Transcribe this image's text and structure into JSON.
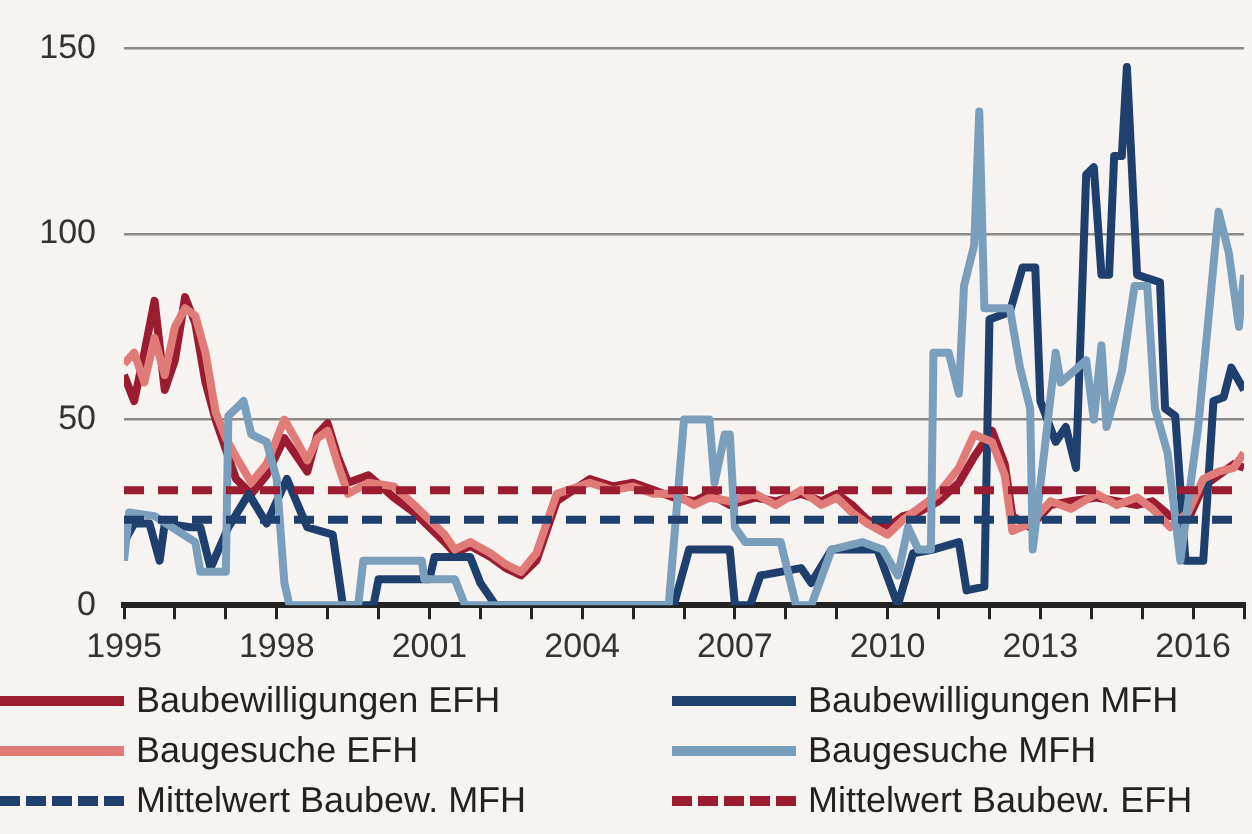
{
  "chart_data": {
    "type": "line",
    "xlim": [
      1995,
      2017
    ],
    "ylim": [
      0,
      150
    ],
    "xticks": [
      1995,
      {
        "value": 1996,
        "label": null
      },
      {
        "value": 1997,
        "label": null
      },
      1998,
      {
        "value": 1999,
        "label": null
      },
      {
        "value": 2000,
        "label": null
      },
      2001,
      {
        "value": 2002,
        "label": null
      },
      {
        "value": 2003,
        "label": null
      },
      2004,
      {
        "value": 2005,
        "label": null
      },
      {
        "value": 2006,
        "label": null
      },
      2007,
      {
        "value": 2008,
        "label": null
      },
      {
        "value": 2009,
        "label": null
      },
      2010,
      {
        "value": 2011,
        "label": null
      },
      {
        "value": 2012,
        "label": null
      },
      2013,
      {
        "value": 2014,
        "label": null
      },
      {
        "value": 2015,
        "label": null
      },
      2016,
      {
        "value": 2017,
        "label": null
      }
    ],
    "yticks": [
      0,
      50,
      100,
      150
    ],
    "grid": "y",
    "legend": "bottom",
    "series": [
      {
        "name": "Baubewilligungen EFH",
        "color": "#9b1b30",
        "x": [
          1995.0,
          1995.2,
          1995.4,
          1995.6,
          1995.8,
          1996.0,
          1996.2,
          1996.4,
          1996.6,
          1996.8,
          1997.0,
          1997.2,
          1997.5,
          1997.8,
          1998.15,
          1998.4,
          1998.6,
          1998.8,
          1999.0,
          1999.2,
          1999.4,
          1999.8,
          2000.3,
          2000.7,
          2001.0,
          2001.3,
          2001.5,
          2001.8,
          2002.2,
          2002.5,
          2002.8,
          2003.1,
          2003.5,
          2004.15,
          2004.6,
          2005.0,
          2005.4,
          2005.8,
          2006.2,
          2006.5,
          2006.9,
          2007.4,
          2007.8,
          2008.3,
          2008.7,
          2009.0,
          2009.3,
          2009.6,
          2010.0,
          2010.3,
          2010.6,
          2011.0,
          2011.4,
          2011.7,
          2012.05,
          2012.3,
          2012.45,
          2012.8,
          2013.2,
          2013.6,
          2014.1,
          2014.5,
          2014.9,
          2015.2,
          2015.55,
          2015.9,
          2016.2,
          2016.5,
          2016.8,
          2017.0
        ],
        "values": [
          62,
          55,
          68,
          82,
          58,
          66,
          83,
          76,
          60,
          50,
          42,
          34,
          30,
          35,
          45,
          40,
          36,
          46,
          49,
          40,
          33,
          35,
          29,
          25,
          21,
          17,
          14,
          16,
          13,
          10,
          8,
          12,
          28,
          34,
          32,
          33,
          31,
          29,
          28,
          30,
          27,
          29,
          28,
          30,
          28,
          30,
          27,
          23,
          21,
          24,
          25,
          28,
          33,
          40,
          47,
          38,
          24,
          21,
          27,
          28,
          29,
          28,
          27,
          28,
          24,
          23,
          32,
          35,
          38,
          37
        ]
      },
      {
        "name": "Baubewilligungen MFH",
        "color": "#1f3f6e",
        "x": [
          1995.0,
          1995.2,
          1995.5,
          1995.7,
          1995.8,
          1996.3,
          1996.5,
          1996.7,
          1997.05,
          1997.45,
          1997.8,
          1998.2,
          1998.6,
          1999.1,
          1999.3,
          1999.9,
          2000.0,
          2001.0,
          2001.1,
          2001.8,
          2002.0,
          2002.3,
          2005.8,
          2006.1,
          2006.9,
          2007.0,
          2007.3,
          2007.5,
          2008.3,
          2008.5,
          2008.9,
          2009.2,
          2009.8,
          2010.2,
          2010.5,
          2010.9,
          2011.4,
          2011.55,
          2011.9,
          2012.0,
          2012.4,
          2012.65,
          2012.9,
          2013.0,
          2013.3,
          2013.5,
          2013.7,
          2013.9,
          2014.05,
          2014.2,
          2014.35,
          2014.45,
          2014.6,
          2014.7,
          2014.9,
          2015.35,
          2015.45,
          2015.65,
          2015.85,
          2016.2,
          2016.4,
          2016.6,
          2016.75,
          2017.0
        ],
        "values": [
          17,
          22,
          22,
          12,
          22,
          21,
          21,
          10,
          21,
          30,
          22,
          34,
          21,
          19,
          0,
          0,
          7,
          7,
          13,
          13,
          6,
          0,
          0,
          15,
          15,
          0,
          0,
          8,
          10,
          6,
          15,
          15,
          15,
          0,
          14,
          15,
          17,
          4,
          5,
          77,
          79,
          91,
          91,
          55,
          44,
          48,
          37,
          116,
          118,
          89,
          89,
          121,
          121,
          145,
          89,
          87,
          53,
          51,
          12,
          12,
          55,
          56,
          64,
          58
        ]
      },
      {
        "name": "Baugesuche EFH",
        "color": "#e07b78",
        "x": [
          1995.0,
          1995.2,
          1995.4,
          1995.6,
          1995.8,
          1996.0,
          1996.2,
          1996.4,
          1996.6,
          1996.8,
          1997.0,
          1997.2,
          1997.5,
          1997.8,
          1998.15,
          1998.4,
          1998.6,
          1998.8,
          1999.0,
          1999.2,
          1999.4,
          1999.8,
          2000.3,
          2000.7,
          2001.0,
          2001.3,
          2001.5,
          2001.8,
          2002.2,
          2002.5,
          2002.8,
          2003.1,
          2003.5,
          2004.15,
          2004.6,
          2005.0,
          2005.4,
          2005.8,
          2006.2,
          2006.5,
          2006.9,
          2007.4,
          2007.8,
          2008.3,
          2008.7,
          2009.0,
          2009.3,
          2009.6,
          2010.0,
          2010.3,
          2010.6,
          2011.0,
          2011.4,
          2011.7,
          2012.05,
          2012.3,
          2012.45,
          2012.8,
          2013.2,
          2013.6,
          2014.1,
          2014.5,
          2014.9,
          2015.2,
          2015.55,
          2015.9,
          2016.2,
          2016.5,
          2016.8,
          2017.0
        ],
        "values": [
          65,
          68,
          60,
          72,
          62,
          75,
          80,
          78,
          68,
          52,
          45,
          40,
          33,
          38,
          50,
          44,
          39,
          45,
          47,
          38,
          30,
          33,
          32,
          27,
          23,
          19,
          15,
          17,
          14,
          11,
          9,
          14,
          30,
          33,
          31,
          32,
          30,
          30,
          27,
          29,
          28,
          30,
          27,
          31,
          27,
          29,
          25,
          22,
          19,
          23,
          26,
          30,
          37,
          46,
          44,
          35,
          20,
          22,
          28,
          26,
          30,
          27,
          29,
          26,
          21,
          25,
          34,
          36,
          37,
          41
        ]
      },
      {
        "name": "Baugesuche MFH",
        "color": "#7a9fbd",
        "x": [
          1995.0,
          1995.1,
          1995.6,
          1996.4,
          1996.5,
          1997.0,
          1997.05,
          1997.35,
          1997.5,
          1997.8,
          1998.0,
          1998.15,
          1998.25,
          1999.6,
          1999.7,
          2000.85,
          2000.9,
          2001.5,
          2001.7,
          2005.7,
          2006.0,
          2006.5,
          2006.6,
          2006.8,
          2006.9,
          2007.0,
          2007.2,
          2007.9,
          2008.2,
          2008.5,
          2008.9,
          2009.5,
          2009.9,
          2010.2,
          2010.4,
          2010.6,
          2010.85,
          2010.9,
          2011.2,
          2011.4,
          2011.5,
          2011.7,
          2011.8,
          2011.9,
          2012.4,
          2012.6,
          2012.8,
          2012.85,
          2013.1,
          2013.3,
          2013.4,
          2013.9,
          2014.05,
          2014.2,
          2014.3,
          2014.6,
          2014.85,
          2015.1,
          2015.25,
          2015.5,
          2015.75,
          2016.1,
          2016.3,
          2016.5,
          2016.7,
          2016.9,
          2017.0
        ],
        "values": [
          12,
          25,
          24,
          17,
          9,
          9,
          51,
          55,
          46,
          44,
          34,
          6,
          0,
          0,
          12,
          12,
          7,
          7,
          0,
          0,
          50,
          50,
          33,
          46,
          46,
          21,
          17,
          17,
          0,
          0,
          15,
          17,
          15,
          8,
          21,
          15,
          15,
          68,
          68,
          57,
          86,
          97,
          133,
          80,
          80,
          64,
          53,
          15,
          44,
          68,
          60,
          66,
          50,
          70,
          48,
          63,
          86,
          86,
          53,
          41,
          12,
          48,
          77,
          106,
          95,
          75,
          89
        ]
      },
      {
        "name": "Mittelwert Baubew. MFH",
        "color": "#1f3f6e",
        "line_style": "dashed",
        "x": [
          1995,
          2017
        ],
        "values": [
          23,
          23
        ]
      },
      {
        "name": "Mittelwert Baubew. EFH",
        "color": "#9b1b30",
        "line_style": "dashed",
        "x": [
          1995,
          2017
        ],
        "values": [
          31,
          31
        ]
      }
    ]
  }
}
